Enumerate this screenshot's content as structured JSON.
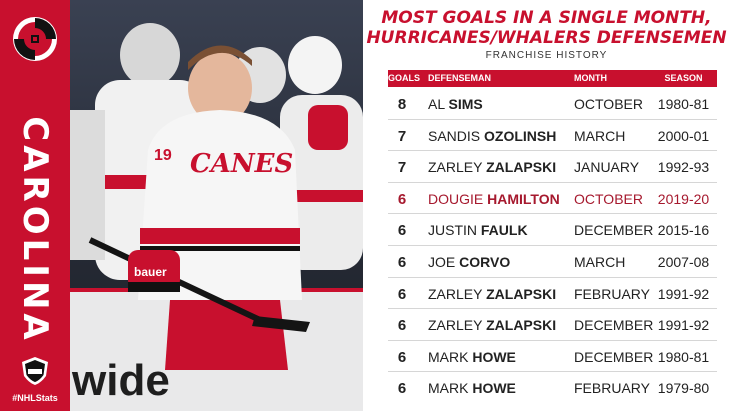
{
  "sidebar": {
    "team_name": "CAROLINA",
    "hashtag": "#NHLStats",
    "accent_color": "#c8102e",
    "team_logo_icon": "hurricane-flag-icon",
    "league_logo_icon": "nhl-shield-icon"
  },
  "photo": {
    "banner_text": "wide",
    "jersey_text": "CANES",
    "jersey_number": "19",
    "glove_brand": "bauer"
  },
  "panel": {
    "title_line1": "Most goals in a single month,",
    "title_line2": "Hurricanes/Whalers defensemen",
    "subtitle": "Franchise History",
    "headers": {
      "goals": "GOALS",
      "defenseman": "DEFENSEMAN",
      "month": "MONTH",
      "season": "SEASON"
    },
    "rows": [
      {
        "goals": "8",
        "first": "Al",
        "last": "Sims",
        "month": "October",
        "season": "1980-81",
        "highlight": false
      },
      {
        "goals": "7",
        "first": "Sandis",
        "last": "Ozolinsh",
        "month": "March",
        "season": "2000-01",
        "highlight": false
      },
      {
        "goals": "7",
        "first": "Zarley",
        "last": "Zalapski",
        "month": "January",
        "season": "1992-93",
        "highlight": false
      },
      {
        "goals": "6",
        "first": "Dougie",
        "last": "Hamilton",
        "month": "October",
        "season": "2019-20",
        "highlight": true
      },
      {
        "goals": "6",
        "first": "Justin",
        "last": "Faulk",
        "month": "December",
        "season": "2015-16",
        "highlight": false
      },
      {
        "goals": "6",
        "first": "Joe",
        "last": "Corvo",
        "month": "March",
        "season": "2007-08",
        "highlight": false
      },
      {
        "goals": "6",
        "first": "Zarley",
        "last": "Zalapski",
        "month": "February",
        "season": "1991-92",
        "highlight": false
      },
      {
        "goals": "6",
        "first": "Zarley",
        "last": "Zalapski",
        "month": "December",
        "season": "1991-92",
        "highlight": false
      },
      {
        "goals": "6",
        "first": "Mark",
        "last": "Howe",
        "month": "December",
        "season": "1980-81",
        "highlight": false
      },
      {
        "goals": "6",
        "first": "Mark",
        "last": "Howe",
        "month": "February",
        "season": "1979-80",
        "highlight": false
      }
    ]
  }
}
